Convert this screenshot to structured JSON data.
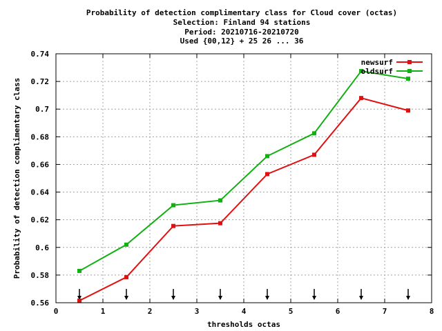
{
  "chart_data": {
    "type": "line",
    "title_lines": [
      "Probability of detection complimentary class  for Cloud cover (octas)",
      "Selection: Finland     94 stations",
      "Period: 20210716-20210720",
      "Used {00,12} + 25 26 ... 36"
    ],
    "xlabel": "thresholds octas",
    "ylabel": "Probability of detection complimentary class",
    "xlim": [
      0,
      8
    ],
    "ylim": [
      0.56,
      0.74
    ],
    "x_ticks": [
      0,
      1,
      2,
      3,
      4,
      5,
      6,
      7,
      8
    ],
    "y_ticks": [
      0.56,
      0.58,
      0.6,
      0.62,
      0.64,
      0.66,
      0.68,
      0.7,
      0.72,
      0.74
    ],
    "x_tick_labels": [
      "0",
      "1",
      "2",
      "3",
      "4",
      "5",
      "6",
      "7",
      "8"
    ],
    "y_tick_labels": [
      "0.56",
      "0.58",
      "0.6",
      "0.62",
      "0.64",
      "0.66",
      "0.68",
      "0.7",
      "0.72",
      "0.74"
    ],
    "grid": true,
    "legend_position": "top-right",
    "x": [
      0.5,
      1.5,
      2.5,
      3.5,
      4.5,
      5.5,
      6.5,
      7.5
    ],
    "series": [
      {
        "name": "newsurf",
        "color": "#e01010",
        "values": [
          0.5615,
          0.5785,
          0.6155,
          0.6175,
          0.653,
          0.667,
          0.708,
          0.699
        ]
      },
      {
        "name": "oldsurf",
        "color": "#10b010",
        "values": [
          0.583,
          0.602,
          0.6305,
          0.634,
          0.666,
          0.6825,
          0.7275,
          0.722
        ]
      }
    ],
    "arrow_markers_x": [
      0.5,
      1.5,
      2.5,
      3.5,
      4.5,
      5.5,
      6.5,
      7.5
    ]
  }
}
